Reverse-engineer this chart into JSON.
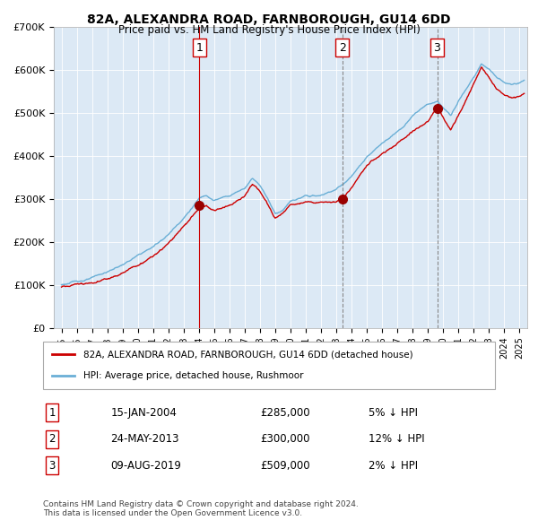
{
  "title": "82A, ALEXANDRA ROAD, FARNBOROUGH, GU14 6DD",
  "subtitle": "Price paid vs. HM Land Registry's House Price Index (HPI)",
  "bg_color": "#dce9f5",
  "plot_bg_color": "#dce9f5",
  "hpi_color": "#6aafd6",
  "price_color": "#cc0000",
  "marker_color": "#990000",
  "vline_solid_color": "#cc0000",
  "vline_dashed_color": "#888888",
  "purchases": [
    {
      "label": "1",
      "date_num": 2004.04,
      "price": 285000,
      "vline_style": "solid"
    },
    {
      "label": "2",
      "date_num": 2013.39,
      "price": 300000,
      "vline_style": "dashed"
    },
    {
      "label": "3",
      "date_num": 2019.6,
      "price": 509000,
      "vline_style": "dashed"
    }
  ],
  "purchase_details": [
    {
      "num": "1",
      "date": "15-JAN-2004",
      "price": "£285,000",
      "note": "5% ↓ HPI"
    },
    {
      "num": "2",
      "date": "24-MAY-2013",
      "price": "£300,000",
      "note": "12% ↓ HPI"
    },
    {
      "num": "3",
      "date": "09-AUG-2019",
      "price": "£509,000",
      "note": "2% ↓ HPI"
    }
  ],
  "legend_entries": [
    {
      "label": "82A, ALEXANDRA ROAD, FARNBOROUGH, GU14 6DD (detached house)",
      "color": "#cc0000"
    },
    {
      "label": "HPI: Average price, detached house, Rushmoor",
      "color": "#6aafd6"
    }
  ],
  "footer": "Contains HM Land Registry data © Crown copyright and database right 2024.\nThis data is licensed under the Open Government Licence v3.0.",
  "ylim": [
    0,
    700000
  ],
  "yticks": [
    0,
    100000,
    200000,
    300000,
    400000,
    500000,
    600000,
    700000
  ],
  "ytick_labels": [
    "£0",
    "£100K",
    "£200K",
    "£300K",
    "£400K",
    "£500K",
    "£600K",
    "£700K"
  ],
  "xlim_start": 1994.5,
  "xlim_end": 2025.5
}
